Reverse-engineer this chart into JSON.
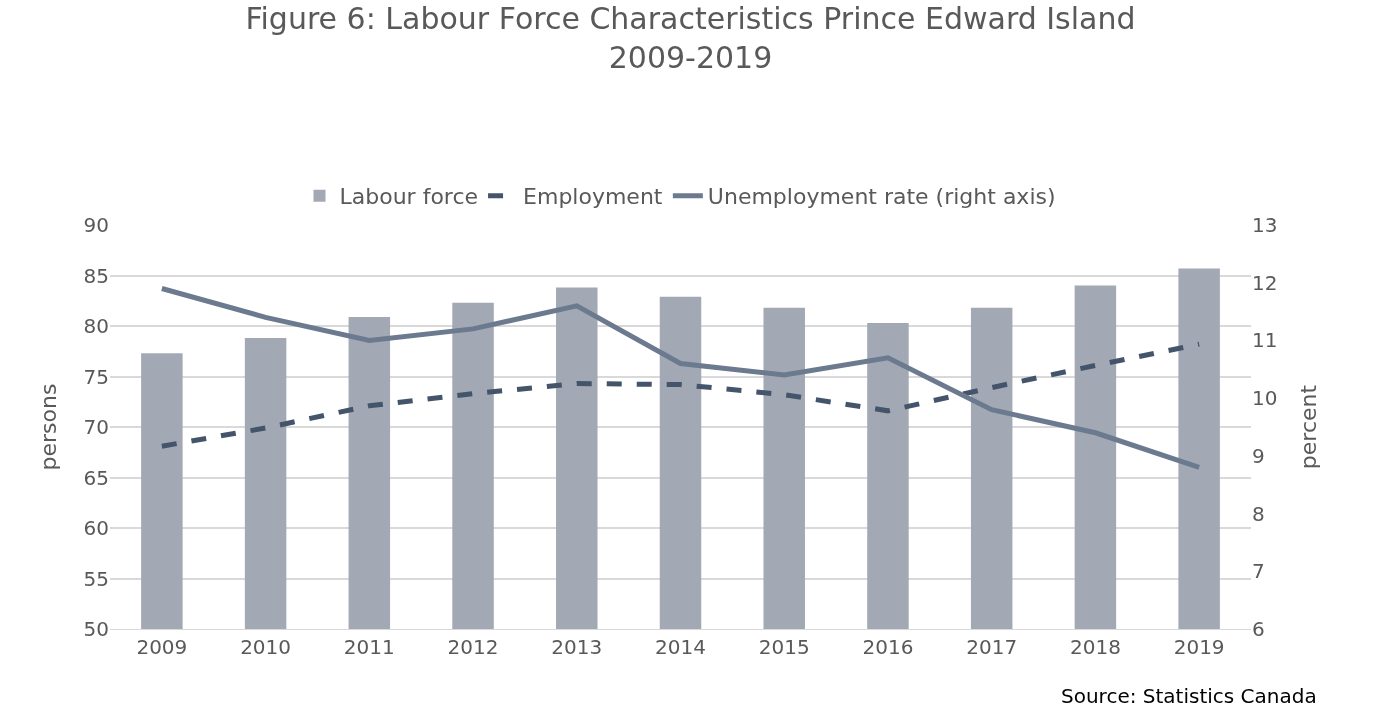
{
  "chart_data": {
    "type": "bar",
    "title": "Figure 6: Labour Force Characteristics Prince Edward Island\n2009-2019",
    "ylabel": "persons",
    "y2label": "percent",
    "categories": [
      "2009",
      "2010",
      "2011",
      "2012",
      "2013",
      "2014",
      "2015",
      "2016",
      "2017",
      "2018",
      "2019"
    ],
    "series": [
      {
        "name": "Labour force",
        "color": "#a2a9b4",
        "values": [
          77.3,
          78.8,
          80.9,
          82.3,
          83.8,
          82.9,
          81.8,
          80.3,
          81.8,
          84.0,
          85.7
        ]
      },
      {
        "name": "Employment",
        "type": "line",
        "line_style": "dashed",
        "color": "#44546a",
        "values": [
          68.1,
          69.9,
          72.1,
          73.3,
          74.3,
          74.2,
          73.2,
          71.6,
          73.9,
          76.1,
          78.2
        ]
      },
      {
        "name": "Unemployment rate (right axis)",
        "type": "line",
        "line_style": "solid",
        "axis": "y2",
        "color": "#6b7a8f",
        "values": [
          11.9,
          11.4,
          11.0,
          11.2,
          11.6,
          10.6,
          10.4,
          10.7,
          9.8,
          9.4,
          8.8
        ]
      }
    ],
    "ylim": [
      50,
      90
    ],
    "yticks": [
      50,
      55,
      60,
      65,
      70,
      75,
      80,
      85,
      90
    ],
    "y2lim": [
      6,
      13
    ],
    "y2ticks": [
      6,
      7,
      8,
      9,
      10,
      11,
      12,
      13
    ],
    "grid": "y",
    "legend": "top",
    "marker": "none",
    "annotations": [
      "Source: Statistics Canada"
    ]
  }
}
